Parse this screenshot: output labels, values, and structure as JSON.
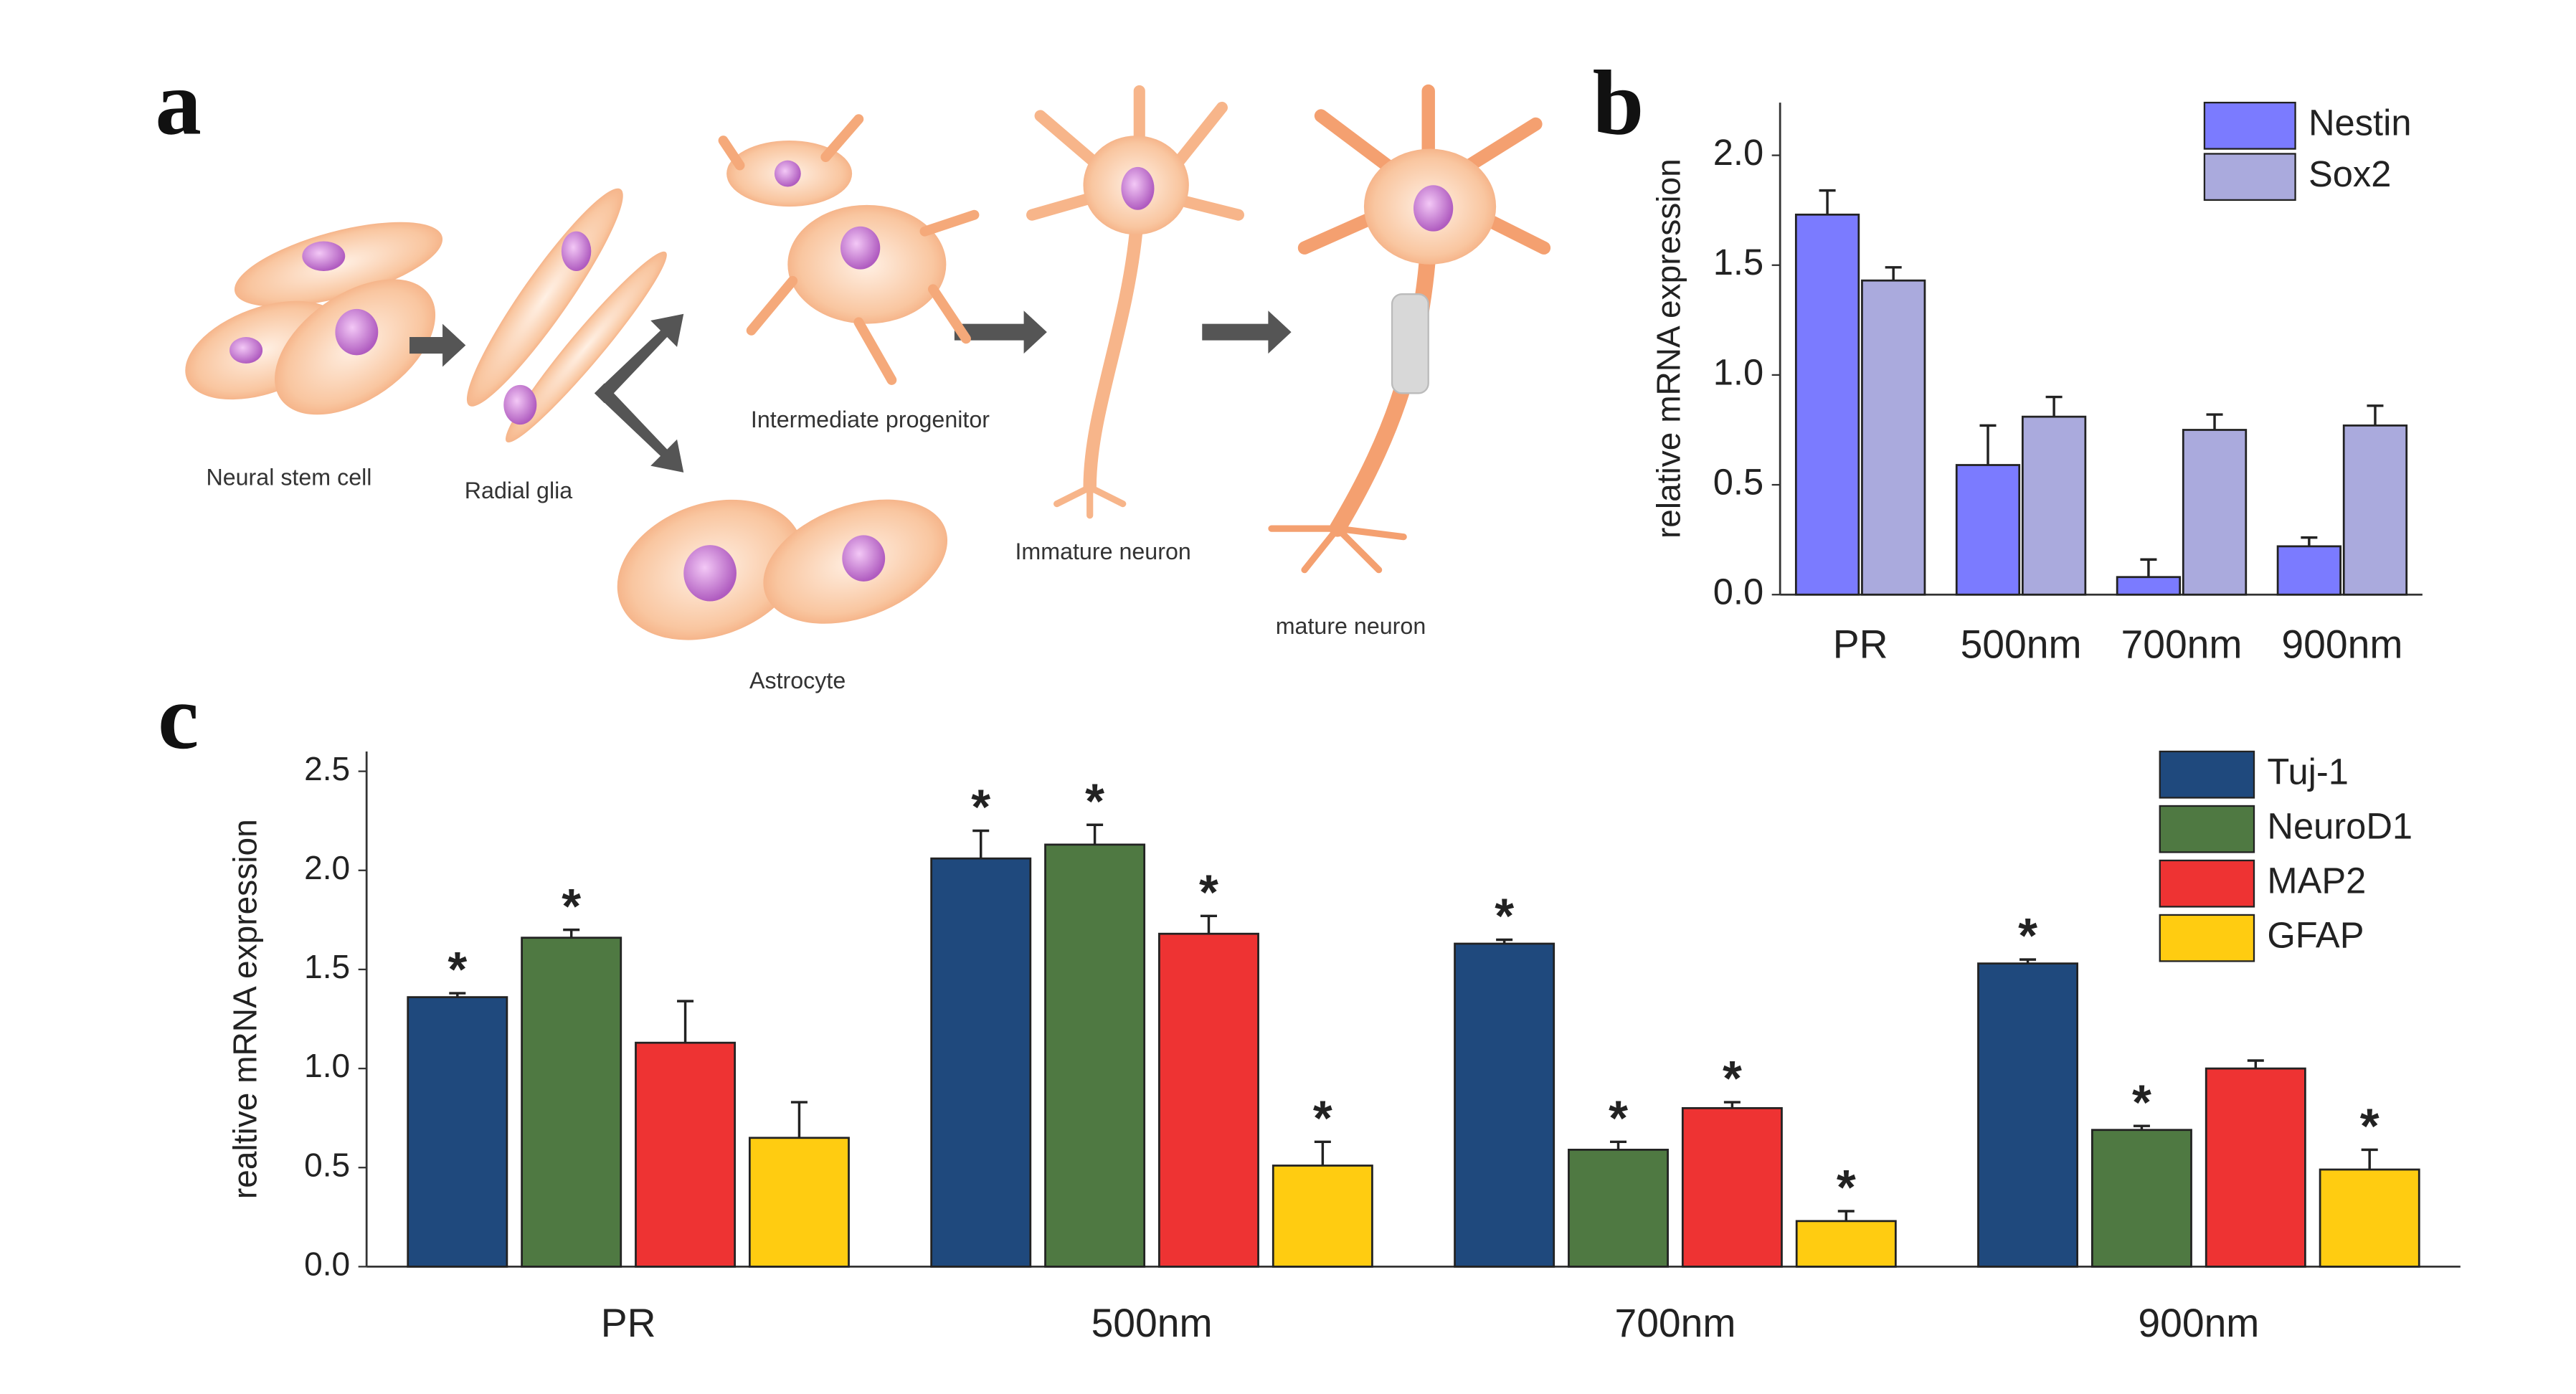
{
  "panel_labels": [
    "a",
    "b",
    "c"
  ],
  "diagram": {
    "labels": [
      "Neural stem cell",
      "Radial glia",
      "Intermediate progenitor",
      "Astrocyte",
      "Immature neuron",
      "mature neuron"
    ]
  },
  "chart_data": [
    {
      "type": "bar",
      "y_label": "relative mRNA expression",
      "categories": [
        "PR",
        "500nm",
        "700nm",
        "900nm"
      ],
      "series": [
        {
          "name": "Nestin",
          "color": "#7b7bff",
          "values": [
            1.73,
            0.59,
            0.08,
            0.22
          ],
          "errors": [
            0.11,
            0.18,
            0.08,
            0.04
          ]
        },
        {
          "name": "Sox2",
          "color": "#aaaadd",
          "values": [
            1.43,
            0.81,
            0.75,
            0.77
          ],
          "errors": [
            0.06,
            0.09,
            0.07,
            0.09
          ]
        }
      ],
      "ylim": [
        0,
        2.24
      ],
      "yticks": [
        {
          "value": 0,
          "label": "0.0"
        },
        {
          "value": 0.5,
          "label": "0.5"
        },
        {
          "value": 1,
          "label": "1.0"
        },
        {
          "value": 1.5,
          "label": "1.5"
        },
        {
          "value": 2,
          "label": "2.0"
        }
      ],
      "legend": "top-right",
      "grid": false
    },
    {
      "type": "bar",
      "y_label": "realtive mRNA  expression",
      "categories": [
        "PR",
        "500nm",
        "700nm",
        "900nm"
      ],
      "series": [
        {
          "name": "Tuj-1",
          "color": "#1f497d",
          "values": [
            1.36,
            2.06,
            1.63,
            1.53
          ],
          "errors": [
            0.02,
            0.14,
            0.02,
            0.02
          ],
          "annotations": [
            "*",
            "*",
            "*",
            "*"
          ]
        },
        {
          "name": "NeuroD1",
          "color": "#4f7942",
          "values": [
            1.66,
            2.13,
            0.59,
            0.69
          ],
          "errors": [
            0.04,
            0.1,
            0.04,
            0.02
          ],
          "annotations": [
            "*",
            "*",
            "*",
            "*"
          ]
        },
        {
          "name": "MAP2",
          "color": "#ee3333",
          "values": [
            1.13,
            1.68,
            0.8,
            1.0
          ],
          "errors": [
            0.21,
            0.09,
            0.03,
            0.04
          ],
          "annotations": [
            null,
            "*",
            "*",
            null
          ]
        },
        {
          "name": "GFAP",
          "color": "#ffcc11",
          "values": [
            0.65,
            0.51,
            0.23,
            0.49
          ],
          "errors": [
            0.18,
            0.12,
            0.05,
            0.1
          ],
          "annotations": [
            null,
            "*",
            "*",
            "*"
          ]
        }
      ],
      "ylim": [
        0,
        2.6
      ],
      "yticks": [
        {
          "value": 0,
          "label": "0.0"
        },
        {
          "value": 0.5,
          "label": "0.5"
        },
        {
          "value": 1,
          "label": "1.0"
        },
        {
          "value": 1.5,
          "label": "1.5"
        },
        {
          "value": 2,
          "label": "2.0"
        },
        {
          "value": 2.5,
          "label": "2.5"
        }
      ],
      "legend": "top-right",
      "grid": false
    }
  ]
}
